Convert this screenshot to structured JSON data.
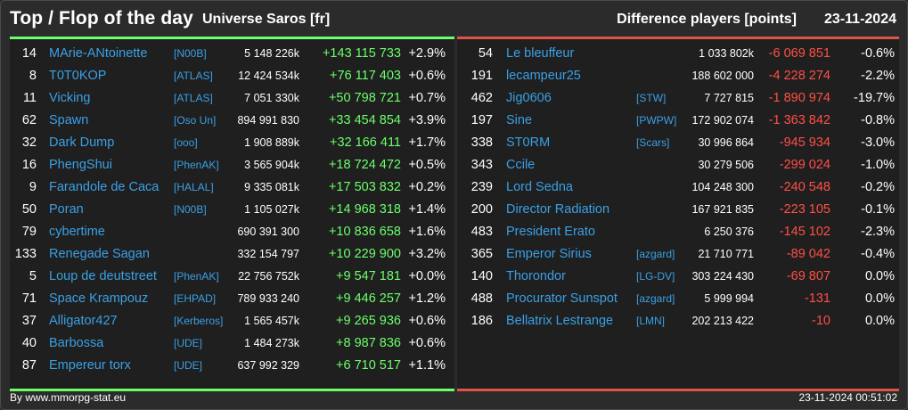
{
  "header": {
    "title": "Top / Flop of the day",
    "universe": "Universe Saros [fr]",
    "difference_label": "Difference players [points]",
    "date": "23-11-2024"
  },
  "colors": {
    "positive": "#6bff6b",
    "negative": "#ff4f45",
    "link": "#3aa0e6"
  },
  "top": [
    {
      "rank": "14",
      "name": "MArie-ANtoinette",
      "alliance": "[N00B]",
      "points": "5 148 226k",
      "diff": "+143 115 733",
      "pct": "+2.9%"
    },
    {
      "rank": "8",
      "name": "T0T0KOP",
      "alliance": "[ATLAS]",
      "points": "12 424 534k",
      "diff": "+76 117 403",
      "pct": "+0.6%"
    },
    {
      "rank": "11",
      "name": "Vicking",
      "alliance": "[ATLAS]",
      "points": "7 051 330k",
      "diff": "+50 798 721",
      "pct": "+0.7%"
    },
    {
      "rank": "62",
      "name": "Spawn",
      "alliance": "[Oso Un]",
      "points": "894 991 830",
      "diff": "+33 454 854",
      "pct": "+3.9%"
    },
    {
      "rank": "32",
      "name": "Dark Dump",
      "alliance": "[ooo]",
      "points": "1 908 889k",
      "diff": "+32 166 411",
      "pct": "+1.7%"
    },
    {
      "rank": "16",
      "name": "PhengShui",
      "alliance": "[PhenAK]",
      "points": "3 565 904k",
      "diff": "+18 724 472",
      "pct": "+0.5%"
    },
    {
      "rank": "9",
      "name": "Farandole de Caca",
      "alliance": "[HALAL]",
      "points": "9 335 081k",
      "diff": "+17 503 832",
      "pct": "+0.2%"
    },
    {
      "rank": "50",
      "name": "Poran",
      "alliance": "[N00B]",
      "points": "1 105 027k",
      "diff": "+14 968 318",
      "pct": "+1.4%"
    },
    {
      "rank": "79",
      "name": "cybertime",
      "alliance": "",
      "points": "690 391 300",
      "diff": "+10 836 658",
      "pct": "+1.6%"
    },
    {
      "rank": "133",
      "name": "Renegade Sagan",
      "alliance": "",
      "points": "332 154 797",
      "diff": "+10 229 900",
      "pct": "+3.2%"
    },
    {
      "rank": "5",
      "name": "Loup de deutstreet",
      "alliance": "[PhenAK]",
      "points": "22 756 752k",
      "diff": "+9 547 181",
      "pct": "+0.0%"
    },
    {
      "rank": "71",
      "name": "Space Krampouz",
      "alliance": "[EHPAD]",
      "points": "789 933 240",
      "diff": "+9 446 257",
      "pct": "+1.2%"
    },
    {
      "rank": "37",
      "name": "Alligator427",
      "alliance": "[Kerberos]",
      "points": "1 565 457k",
      "diff": "+9 265 936",
      "pct": "+0.6%"
    },
    {
      "rank": "40",
      "name": "Barbossa",
      "alliance": "[UDE]",
      "points": "1 484 273k",
      "diff": "+8 987 836",
      "pct": "+0.6%"
    },
    {
      "rank": "87",
      "name": "Empereur torx",
      "alliance": "[UDE]",
      "points": "637 992 329",
      "diff": "+6 710 517",
      "pct": "+1.1%"
    }
  ],
  "flop": [
    {
      "rank": "54",
      "name": "Le bleuffeur",
      "alliance": "",
      "points": "1 033 802k",
      "diff": "-6 069 851",
      "pct": "-0.6%"
    },
    {
      "rank": "191",
      "name": "lecampeur25",
      "alliance": "",
      "points": "188 602 000",
      "diff": "-4 228 274",
      "pct": "-2.2%"
    },
    {
      "rank": "462",
      "name": "Jig0606",
      "alliance": "[STW]",
      "points": "7 727 815",
      "diff": "-1 890 974",
      "pct": "-19.7%"
    },
    {
      "rank": "197",
      "name": "Sine",
      "alliance": "[PWPW]",
      "points": "172 902 074",
      "diff": "-1 363 842",
      "pct": "-0.8%"
    },
    {
      "rank": "338",
      "name": "ST0RM",
      "alliance": "[Scars]",
      "points": "30 996 864",
      "diff": "-945 934",
      "pct": "-3.0%"
    },
    {
      "rank": "343",
      "name": "Ccile",
      "alliance": "",
      "points": "30 279 506",
      "diff": "-299 024",
      "pct": "-1.0%"
    },
    {
      "rank": "239",
      "name": "Lord Sedna",
      "alliance": "",
      "points": "104 248 300",
      "diff": "-240 548",
      "pct": "-0.2%"
    },
    {
      "rank": "200",
      "name": "Director Radiation",
      "alliance": "",
      "points": "167 921 835",
      "diff": "-223 105",
      "pct": "-0.1%"
    },
    {
      "rank": "483",
      "name": "President Erato",
      "alliance": "",
      "points": "6 250 376",
      "diff": "-145 102",
      "pct": "-2.3%"
    },
    {
      "rank": "365",
      "name": "Emperor Sirius",
      "alliance": "[azgard]",
      "points": "21 710 771",
      "diff": "-89 042",
      "pct": "-0.4%"
    },
    {
      "rank": "140",
      "name": "Thorondor",
      "alliance": "[LG-DV]",
      "points": "303 224 430",
      "diff": "-69 807",
      "pct": "0.0%"
    },
    {
      "rank": "488",
      "name": "Procurator Sunspot",
      "alliance": "[azgard]",
      "points": "5 999 994",
      "diff": "-131",
      "pct": "0.0%"
    },
    {
      "rank": "186",
      "name": "Bellatrix Lestrange",
      "alliance": "[LMN]",
      "points": "202 213 422",
      "diff": "-10",
      "pct": "0.0%"
    }
  ],
  "footer": {
    "credit": "By www.mmorpg-stat.eu",
    "timestamp": "23-11-2024 00:51:02"
  }
}
